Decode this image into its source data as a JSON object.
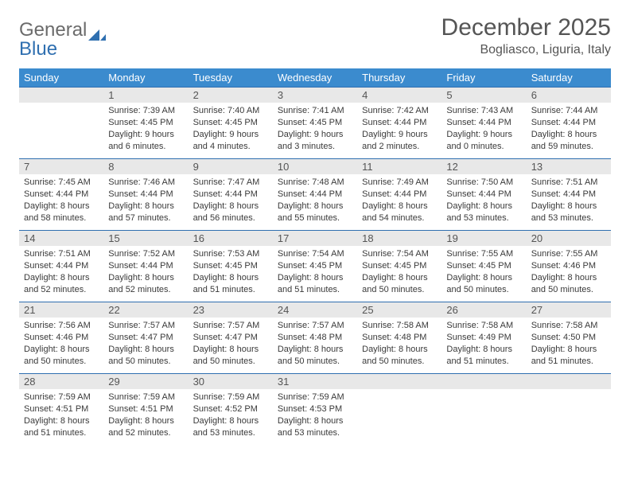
{
  "logo": {
    "text_gray": "General",
    "text_blue": "Blue"
  },
  "title": {
    "month": "December 2025",
    "location": "Bogliasco, Liguria, Italy"
  },
  "colors": {
    "header_bg": "#3b8bce",
    "header_text": "#ffffff",
    "daynum_bg": "#e8e8e8",
    "daynum_text": "#555555",
    "cell_text": "#3a3a3a",
    "row_border": "#2f6fb0",
    "logo_gray": "#6b6b6b",
    "logo_blue": "#2f6fb0",
    "title_text": "#555555"
  },
  "typography": {
    "title_fontsize": 30,
    "location_fontsize": 16,
    "header_fontsize": 13,
    "daynum_fontsize": 13,
    "body_fontsize": 11
  },
  "weekdays": [
    "Sunday",
    "Monday",
    "Tuesday",
    "Wednesday",
    "Thursday",
    "Friday",
    "Saturday"
  ],
  "weeks": [
    [
      null,
      {
        "n": "1",
        "sr": "Sunrise: 7:39 AM",
        "ss": "Sunset: 4:45 PM",
        "dl": "Daylight: 9 hours and 6 minutes."
      },
      {
        "n": "2",
        "sr": "Sunrise: 7:40 AM",
        "ss": "Sunset: 4:45 PM",
        "dl": "Daylight: 9 hours and 4 minutes."
      },
      {
        "n": "3",
        "sr": "Sunrise: 7:41 AM",
        "ss": "Sunset: 4:45 PM",
        "dl": "Daylight: 9 hours and 3 minutes."
      },
      {
        "n": "4",
        "sr": "Sunrise: 7:42 AM",
        "ss": "Sunset: 4:44 PM",
        "dl": "Daylight: 9 hours and 2 minutes."
      },
      {
        "n": "5",
        "sr": "Sunrise: 7:43 AM",
        "ss": "Sunset: 4:44 PM",
        "dl": "Daylight: 9 hours and 0 minutes."
      },
      {
        "n": "6",
        "sr": "Sunrise: 7:44 AM",
        "ss": "Sunset: 4:44 PM",
        "dl": "Daylight: 8 hours and 59 minutes."
      }
    ],
    [
      {
        "n": "7",
        "sr": "Sunrise: 7:45 AM",
        "ss": "Sunset: 4:44 PM",
        "dl": "Daylight: 8 hours and 58 minutes."
      },
      {
        "n": "8",
        "sr": "Sunrise: 7:46 AM",
        "ss": "Sunset: 4:44 PM",
        "dl": "Daylight: 8 hours and 57 minutes."
      },
      {
        "n": "9",
        "sr": "Sunrise: 7:47 AM",
        "ss": "Sunset: 4:44 PM",
        "dl": "Daylight: 8 hours and 56 minutes."
      },
      {
        "n": "10",
        "sr": "Sunrise: 7:48 AM",
        "ss": "Sunset: 4:44 PM",
        "dl": "Daylight: 8 hours and 55 minutes."
      },
      {
        "n": "11",
        "sr": "Sunrise: 7:49 AM",
        "ss": "Sunset: 4:44 PM",
        "dl": "Daylight: 8 hours and 54 minutes."
      },
      {
        "n": "12",
        "sr": "Sunrise: 7:50 AM",
        "ss": "Sunset: 4:44 PM",
        "dl": "Daylight: 8 hours and 53 minutes."
      },
      {
        "n": "13",
        "sr": "Sunrise: 7:51 AM",
        "ss": "Sunset: 4:44 PM",
        "dl": "Daylight: 8 hours and 53 minutes."
      }
    ],
    [
      {
        "n": "14",
        "sr": "Sunrise: 7:51 AM",
        "ss": "Sunset: 4:44 PM",
        "dl": "Daylight: 8 hours and 52 minutes."
      },
      {
        "n": "15",
        "sr": "Sunrise: 7:52 AM",
        "ss": "Sunset: 4:44 PM",
        "dl": "Daylight: 8 hours and 52 minutes."
      },
      {
        "n": "16",
        "sr": "Sunrise: 7:53 AM",
        "ss": "Sunset: 4:45 PM",
        "dl": "Daylight: 8 hours and 51 minutes."
      },
      {
        "n": "17",
        "sr": "Sunrise: 7:54 AM",
        "ss": "Sunset: 4:45 PM",
        "dl": "Daylight: 8 hours and 51 minutes."
      },
      {
        "n": "18",
        "sr": "Sunrise: 7:54 AM",
        "ss": "Sunset: 4:45 PM",
        "dl": "Daylight: 8 hours and 50 minutes."
      },
      {
        "n": "19",
        "sr": "Sunrise: 7:55 AM",
        "ss": "Sunset: 4:45 PM",
        "dl": "Daylight: 8 hours and 50 minutes."
      },
      {
        "n": "20",
        "sr": "Sunrise: 7:55 AM",
        "ss": "Sunset: 4:46 PM",
        "dl": "Daylight: 8 hours and 50 minutes."
      }
    ],
    [
      {
        "n": "21",
        "sr": "Sunrise: 7:56 AM",
        "ss": "Sunset: 4:46 PM",
        "dl": "Daylight: 8 hours and 50 minutes."
      },
      {
        "n": "22",
        "sr": "Sunrise: 7:57 AM",
        "ss": "Sunset: 4:47 PM",
        "dl": "Daylight: 8 hours and 50 minutes."
      },
      {
        "n": "23",
        "sr": "Sunrise: 7:57 AM",
        "ss": "Sunset: 4:47 PM",
        "dl": "Daylight: 8 hours and 50 minutes."
      },
      {
        "n": "24",
        "sr": "Sunrise: 7:57 AM",
        "ss": "Sunset: 4:48 PM",
        "dl": "Daylight: 8 hours and 50 minutes."
      },
      {
        "n": "25",
        "sr": "Sunrise: 7:58 AM",
        "ss": "Sunset: 4:48 PM",
        "dl": "Daylight: 8 hours and 50 minutes."
      },
      {
        "n": "26",
        "sr": "Sunrise: 7:58 AM",
        "ss": "Sunset: 4:49 PM",
        "dl": "Daylight: 8 hours and 51 minutes."
      },
      {
        "n": "27",
        "sr": "Sunrise: 7:58 AM",
        "ss": "Sunset: 4:50 PM",
        "dl": "Daylight: 8 hours and 51 minutes."
      }
    ],
    [
      {
        "n": "28",
        "sr": "Sunrise: 7:59 AM",
        "ss": "Sunset: 4:51 PM",
        "dl": "Daylight: 8 hours and 51 minutes."
      },
      {
        "n": "29",
        "sr": "Sunrise: 7:59 AM",
        "ss": "Sunset: 4:51 PM",
        "dl": "Daylight: 8 hours and 52 minutes."
      },
      {
        "n": "30",
        "sr": "Sunrise: 7:59 AM",
        "ss": "Sunset: 4:52 PM",
        "dl": "Daylight: 8 hours and 53 minutes."
      },
      {
        "n": "31",
        "sr": "Sunrise: 7:59 AM",
        "ss": "Sunset: 4:53 PM",
        "dl": "Daylight: 8 hours and 53 minutes."
      },
      null,
      null,
      null
    ]
  ]
}
